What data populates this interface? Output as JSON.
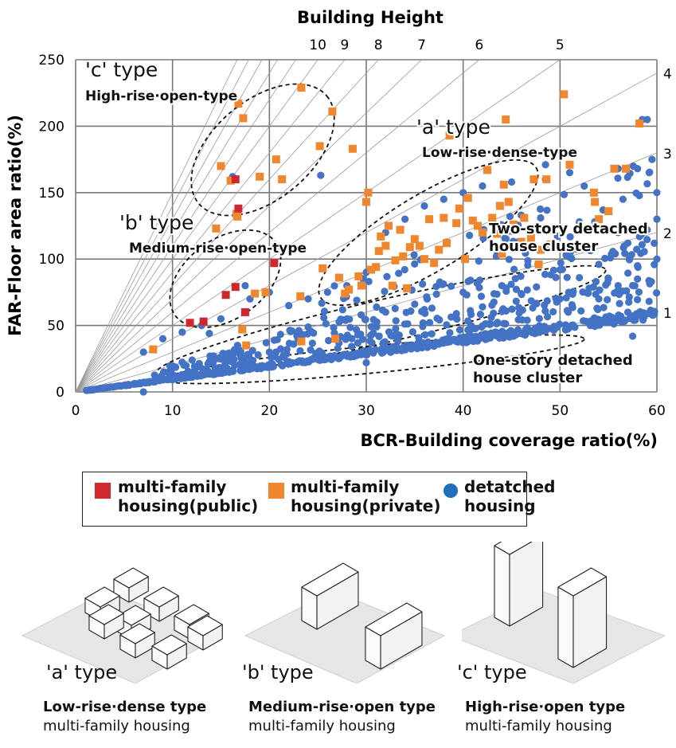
{
  "chart_data": {
    "type": "scatter",
    "title": "Building Height",
    "xlabel": "BCR-Building coverage ratio(%)",
    "ylabel": "FAR-Floor area ratio(%)",
    "xlim": [
      0,
      60
    ],
    "ylim": [
      0,
      250
    ],
    "xticks": [
      0,
      10,
      20,
      30,
      40,
      50,
      60
    ],
    "yticks": [
      0,
      50,
      100,
      150,
      200,
      250
    ],
    "floor_lines": [
      1,
      2,
      3,
      4,
      5,
      6,
      7,
      8,
      9,
      10,
      11,
      12,
      13,
      14,
      15
    ],
    "top_height_labels": [
      "10",
      "9",
      "8",
      "7",
      "6",
      "5"
    ],
    "top_height_values": [
      10,
      9,
      8,
      7,
      6,
      5
    ],
    "right_height_labels": [
      "4",
      "3",
      "2",
      "1"
    ],
    "right_height_values": [
      4,
      3,
      2,
      1
    ],
    "series": [
      {
        "name": "multi-family housing(public)",
        "color": "#d0262d",
        "marker": "square",
        "points": [
          [
            11.8,
            52
          ],
          [
            13.2,
            53
          ],
          [
            15.5,
            73
          ],
          [
            16.5,
            160
          ],
          [
            16.8,
            138
          ],
          [
            16.5,
            79
          ],
          [
            17.5,
            60
          ],
          [
            20.5,
            97
          ]
        ]
      },
      {
        "name": "multi-family housing(private)",
        "color": "#f0862d",
        "marker": "square",
        "points": [
          [
            8,
            32
          ],
          [
            14.5,
            123
          ],
          [
            15,
            170
          ],
          [
            16,
            159
          ],
          [
            16.8,
            217
          ],
          [
            17.3,
            206
          ],
          [
            16.7,
            132
          ],
          [
            16.6,
            134
          ],
          [
            17.2,
            47
          ],
          [
            17.6,
            35
          ],
          [
            18.5,
            74
          ],
          [
            19,
            162
          ],
          [
            19.6,
            75
          ],
          [
            20.7,
            175
          ],
          [
            21.3,
            160
          ],
          [
            23.3,
            229
          ],
          [
            23.2,
            72
          ],
          [
            23.3,
            38
          ],
          [
            25.2,
            185
          ],
          [
            25.5,
            93
          ],
          [
            26.5,
            211
          ],
          [
            26.8,
            40
          ],
          [
            27.2,
            86
          ],
          [
            27.8,
            74
          ],
          [
            28.2,
            77
          ],
          [
            28.6,
            183
          ],
          [
            29.2,
            87
          ],
          [
            29.5,
            80
          ],
          [
            30,
            143
          ],
          [
            30.2,
            150
          ],
          [
            30.5,
            92
          ],
          [
            31,
            94
          ],
          [
            31.3,
            106
          ],
          [
            31.5,
            117
          ],
          [
            32,
            110
          ],
          [
            32.3,
            125
          ],
          [
            32.7,
            80
          ],
          [
            33,
            99
          ],
          [
            33.5,
            122
          ],
          [
            33.8,
            102
          ],
          [
            34.2,
            78
          ],
          [
            34.5,
            109
          ],
          [
            35,
            115
          ],
          [
            35.5,
            110
          ],
          [
            36,
            100
          ],
          [
            36.5,
            130
          ],
          [
            37,
            97
          ],
          [
            37.5,
            107
          ],
          [
            38,
            131
          ],
          [
            38.3,
            112
          ],
          [
            38.6,
            193
          ],
          [
            39.3,
            127
          ],
          [
            39.6,
            138
          ],
          [
            40.2,
            100
          ],
          [
            40.5,
            146
          ],
          [
            41,
            129
          ],
          [
            41.5,
            125
          ],
          [
            42,
            120
          ],
          [
            42.5,
            167
          ],
          [
            43,
            131
          ],
          [
            43.5,
            119
          ],
          [
            43.8,
            140
          ],
          [
            44,
            104
          ],
          [
            44.2,
            156
          ],
          [
            44.4,
            205
          ],
          [
            44.7,
            143
          ],
          [
            45.2,
            126
          ],
          [
            46,
            113
          ],
          [
            46.3,
            131
          ],
          [
            47,
            116
          ],
          [
            47.3,
            160
          ],
          [
            47.8,
            96
          ],
          [
            48,
            107
          ],
          [
            48.6,
            160
          ],
          [
            49,
            111
          ],
          [
            50.4,
            224
          ],
          [
            51,
            171
          ],
          [
            53.5,
            150
          ],
          [
            53.6,
            143
          ],
          [
            54,
            130
          ],
          [
            55,
            136
          ],
          [
            55.6,
            168
          ],
          [
            56.8,
            168
          ],
          [
            58.2,
            202
          ]
        ]
      },
      {
        "name": "detatched housing",
        "color": "#4472c4",
        "marker": "circle",
        "generator": "bands",
        "points": [
          [
            25.3,
            163
          ],
          [
            16.2,
            162
          ],
          [
            17.5,
            80
          ],
          [
            13.8,
            44
          ],
          [
            48.5,
            171
          ],
          [
            51,
            165
          ],
          [
            56,
            168
          ],
          [
            58.5,
            205
          ],
          [
            59.5,
            175
          ],
          [
            59.2,
            165
          ],
          [
            59,
            205
          ],
          [
            58,
            168
          ],
          [
            60,
            150
          ],
          [
            56.5,
            145
          ],
          [
            52.5,
            155
          ],
          [
            48.5,
            160
          ],
          [
            45,
            158
          ],
          [
            42,
            155
          ],
          [
            40,
            150
          ],
          [
            38,
            145
          ],
          [
            36,
            140
          ],
          [
            34,
            130
          ],
          [
            32,
            120
          ],
          [
            7,
            30
          ],
          [
            9,
            40
          ],
          [
            11,
            45
          ],
          [
            13,
            50
          ],
          [
            15,
            55
          ],
          [
            18,
            70
          ],
          [
            20,
            75
          ],
          [
            22,
            65
          ],
          [
            24,
            70
          ],
          [
            26,
            75
          ],
          [
            28,
            80
          ],
          [
            30,
            90
          ],
          [
            46,
            133
          ],
          [
            48,
            131
          ],
          [
            45,
            121
          ],
          [
            52,
            128
          ],
          [
            56,
            120
          ],
          [
            57,
            112
          ],
          [
            59,
            122
          ],
          [
            60,
            130
          ],
          [
            60,
            100
          ],
          [
            58,
            95
          ],
          [
            55,
            85
          ],
          [
            54,
            96
          ],
          [
            57,
            60
          ],
          [
            57.5,
            42
          ],
          [
            59.5,
            58
          ],
          [
            54,
            70
          ],
          [
            50,
            92
          ],
          [
            52,
            86
          ],
          [
            37.5,
            36
          ],
          [
            30,
            22
          ],
          [
            20,
            30
          ],
          [
            7,
            0
          ],
          [
            28,
            55
          ],
          [
            32,
            60
          ],
          [
            36,
            62
          ],
          [
            42,
            64
          ],
          [
            46,
            74
          ],
          [
            50,
            70
          ],
          [
            53,
            78
          ],
          [
            56,
            80
          ],
          [
            58,
            85
          ],
          [
            44,
            80
          ],
          [
            40,
            75
          ],
          [
            35,
            66
          ]
        ]
      }
    ],
    "annotations": [
      {
        "title": "'c' type",
        "subtitle": "High-rise·open-type"
      },
      {
        "title": "'a' type",
        "subtitle": "Low-rise·dense-type"
      },
      {
        "title": "'b' type",
        "subtitle": "Medium-rise·open-type"
      },
      {
        "title": "",
        "subtitle": "Two-story detached house cluster",
        "lines": [
          "Two-story detached",
          "house cluster"
        ]
      },
      {
        "title": "",
        "subtitle": "One-story detached house cluster",
        "lines": [
          "One-story detached",
          "house cluster"
        ]
      }
    ],
    "legend_position": "below-chart"
  },
  "legend": {
    "public_line1": "multi-family",
    "public_line2": "housing(public)",
    "private_line1": "multi-family",
    "private_line2": "housing(private)",
    "detached_line1": "detatched",
    "detached_line2": "housing",
    "colors": {
      "public": "#d0262d",
      "private": "#f0862d",
      "detached": "#1f6ebd"
    }
  },
  "panels": [
    {
      "type_label": "'a' type",
      "title": "Low-rise·dense type",
      "subtitle": "multi-family housing"
    },
    {
      "type_label": "'b' type",
      "title": "Medium-rise·open type",
      "subtitle": "multi-family housing"
    },
    {
      "type_label": "'c' type",
      "title": "High-rise·open type",
      "subtitle": "multi-family housing"
    }
  ]
}
